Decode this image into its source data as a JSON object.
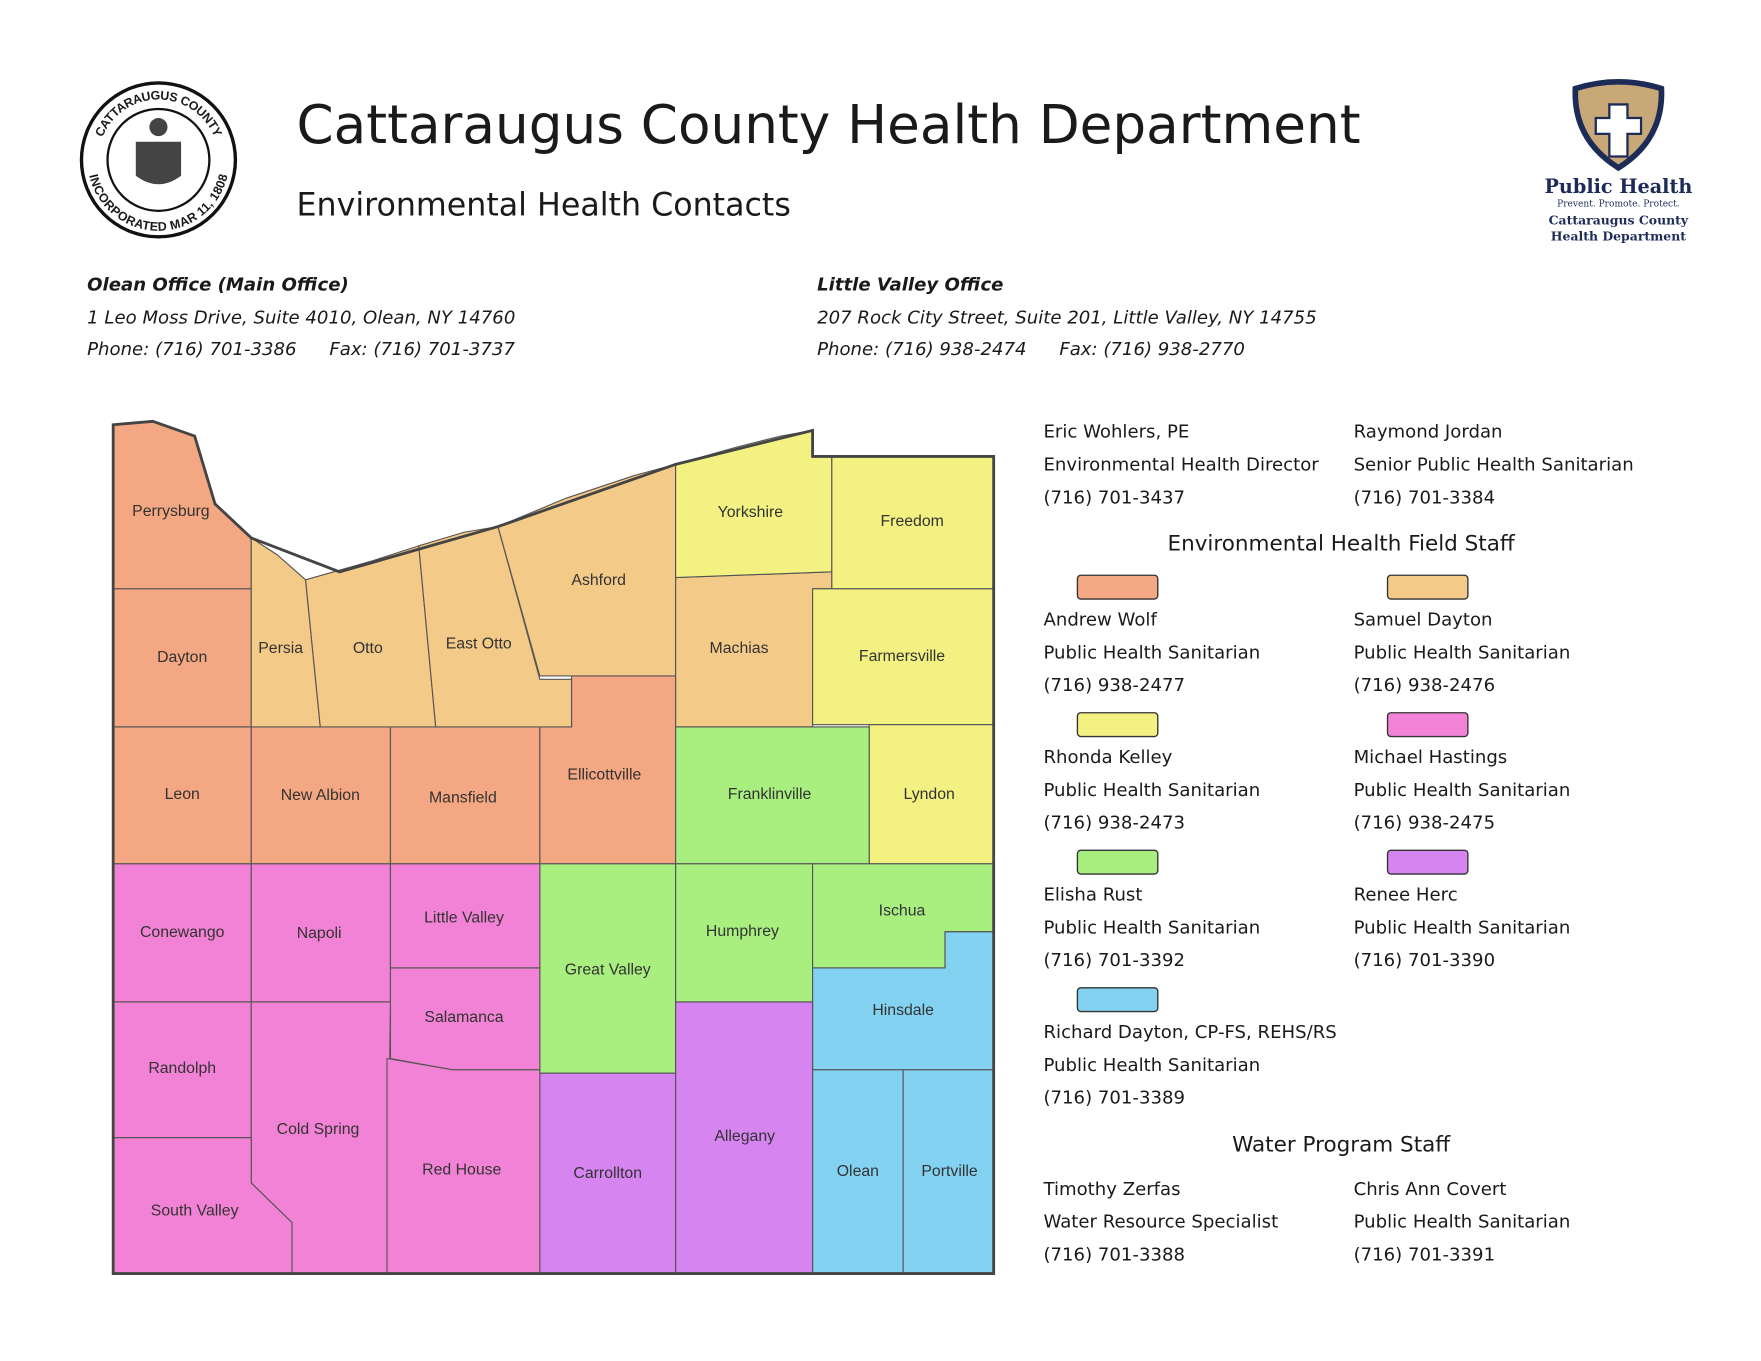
{
  "header": {
    "title": "Cattaraugus County Health Department",
    "subtitle": "Environmental Health Contacts",
    "seal": {
      "top": "CATTARAUGUS COUNTY",
      "bottom": "INCORPORATED MAR 11, 1808"
    },
    "logo": {
      "name": "Public Health",
      "tagline": "Prevent. Promote. Protect.",
      "line1": "Cattaraugus County",
      "line2": "Health Department"
    }
  },
  "offices": [
    {
      "name": "Olean Office (Main Office)",
      "address": "1 Leo Moss Drive, Suite 4010, Olean, NY 14760",
      "phone": "Phone: (716) 701-3386",
      "fax": "Fax: (716) 701-3737"
    },
    {
      "name": "Little Valley Office",
      "address": "207 Rock City Street, Suite 201, Little Valley, NY 14755",
      "phone": "Phone: (716) 938-2474",
      "fax": "Fax: (716) 938-2770"
    }
  ],
  "leaders": [
    {
      "name": "Eric Wohlers, PE",
      "role": "Environmental Health Director",
      "phone": "(716) 701-3437"
    },
    {
      "name": "Raymond Jordan",
      "role": "Senior Public Health Sanitarian",
      "phone": "(716) 701-3384"
    }
  ],
  "field_staff": {
    "heading": "Environmental Health Field Staff",
    "staff": [
      {
        "name": "Andrew Wolf",
        "role": "Public Health Sanitarian",
        "phone": "(716) 938-2477",
        "color": "#f3a782"
      },
      {
        "name": "Samuel Dayton",
        "role": "Public Health Sanitarian",
        "phone": "(716) 938-2476",
        "color": "#f4ca88"
      },
      {
        "name": "Rhonda Kelley",
        "role": "Public Health Sanitarian",
        "phone": "(716) 938-2473",
        "color": "#f2f182"
      },
      {
        "name": "Michael Hastings",
        "role": "Public Health Sanitarian",
        "phone": "(716) 938-2475",
        "color": "#f282d5"
      },
      {
        "name": "Elisha Rust",
        "role": "Public Health Sanitarian",
        "phone": "(716) 701-3392",
        "color": "#a8ef80"
      },
      {
        "name": "Renee Herc",
        "role": "Public Health Sanitarian",
        "phone": "(716) 701-3390",
        "color": "#d684ef"
      },
      {
        "name": "Richard Dayton, CP-FS, REHS/RS",
        "role": "Public Health Sanitarian",
        "phone": "(716) 701-3389",
        "color": "#83d2f1"
      }
    ]
  },
  "water_staff": {
    "heading": "Water Program Staff",
    "staff": [
      {
        "name": "Timothy Zerfas",
        "role": "Water Resource Specialist",
        "phone": "(716) 701-3388"
      },
      {
        "name": "Chris Ann Covert",
        "role": "Public Health Sanitarian",
        "phone": "(716) 701-3391"
      }
    ]
  },
  "map": {
    "towns": [
      "Perrysburg",
      "Dayton",
      "Leon",
      "New Albion",
      "Mansfield",
      "Ellicottville",
      "Persia",
      "Otto",
      "East Otto",
      "Ashford",
      "Machias",
      "Yorkshire",
      "Freedom",
      "Farmersville",
      "Lyndon",
      "Franklinville",
      "Great Valley",
      "Humphrey",
      "Ischua",
      "Hinsdale",
      "Olean",
      "Portville",
      "Carrollton",
      "Allegany",
      "Conewango",
      "Napoli",
      "Little Valley",
      "Salamanca",
      "Randolph",
      "Cold Spring",
      "Red House",
      "South Valley"
    ]
  }
}
